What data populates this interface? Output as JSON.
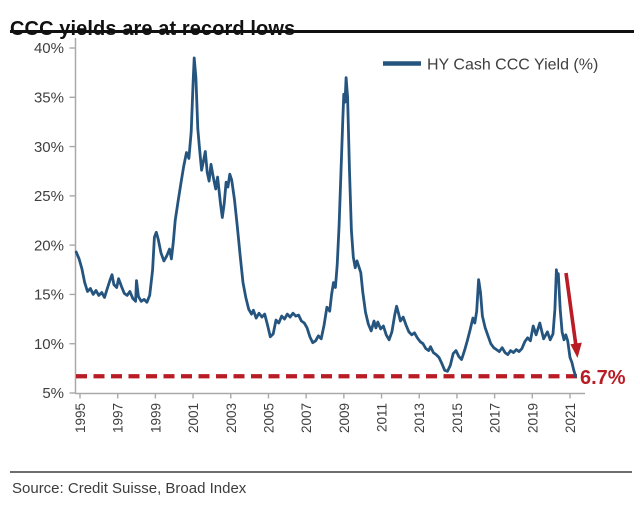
{
  "header": {
    "title": "CCC yields are at record lows"
  },
  "footer": {
    "source": "Source: Credit Suisse, Broad Index"
  },
  "colors": {
    "line_blue": "#25557F",
    "red": "#B91C25",
    "axis_gray": "#A9A9A9",
    "label_gray": "#3F3F3F",
    "legend_text": "#3F3F3F"
  },
  "chart_data": {
    "type": "line",
    "title": "CCC yields are at record lows",
    "legend": "HY Cash CCC Yield (%)",
    "legend_position": "top-right",
    "grid": false,
    "xlabel": "",
    "ylabel": "",
    "xlim": [
      1994.7,
      2021.7
    ],
    "ylim": [
      5,
      40
    ],
    "y_ticks": [
      {
        "label": "40%",
        "value": 40
      },
      {
        "label": "35%",
        "value": 35
      },
      {
        "label": "30%",
        "value": 30
      },
      {
        "label": "25%",
        "value": 25
      },
      {
        "label": "20%",
        "value": 20
      },
      {
        "label": "15%",
        "value": 15
      },
      {
        "label": "10%",
        "value": 10
      },
      {
        "label": "5%",
        "value": 5
      }
    ],
    "x_ticks": [
      {
        "label": "1995",
        "value": 1995
      },
      {
        "label": "1997",
        "value": 1997
      },
      {
        "label": "1999",
        "value": 1999
      },
      {
        "label": "2001",
        "value": 2001
      },
      {
        "label": "2003",
        "value": 2003
      },
      {
        "label": "2005",
        "value": 2005
      },
      {
        "label": "2007",
        "value": 2007
      },
      {
        "label": "2009",
        "value": 2009
      },
      {
        "label": "2011",
        "value": 2011
      },
      {
        "label": "2013",
        "value": 2013
      },
      {
        "label": "2015",
        "value": 2015
      },
      {
        "label": "2017",
        "value": 2017
      },
      {
        "label": "2019",
        "value": 2019
      },
      {
        "label": "2021",
        "value": 2021
      }
    ],
    "reference_line": {
      "value": 6.7,
      "label": "6.7%",
      "style": "dashed",
      "color": "#B91C25"
    },
    "series": [
      {
        "name": "HY Cash CCC Yield (%)",
        "points": [
          [
            1994.8,
            19.3
          ],
          [
            1994.95,
            18.6
          ],
          [
            1995.1,
            17.6
          ],
          [
            1995.25,
            16.2
          ],
          [
            1995.4,
            15.3
          ],
          [
            1995.55,
            15.6
          ],
          [
            1995.7,
            15.0
          ],
          [
            1995.85,
            15.4
          ],
          [
            1996.0,
            14.9
          ],
          [
            1996.15,
            15.2
          ],
          [
            1996.3,
            14.7
          ],
          [
            1996.45,
            15.6
          ],
          [
            1996.6,
            16.5
          ],
          [
            1996.7,
            17.0
          ],
          [
            1996.8,
            16.0
          ],
          [
            1996.95,
            15.7
          ],
          [
            1997.05,
            16.6
          ],
          [
            1997.2,
            15.8
          ],
          [
            1997.35,
            15.1
          ],
          [
            1997.5,
            14.9
          ],
          [
            1997.65,
            15.3
          ],
          [
            1997.8,
            14.6
          ],
          [
            1997.95,
            14.3
          ],
          [
            1998.0,
            16.4
          ],
          [
            1998.1,
            14.8
          ],
          [
            1998.25,
            14.3
          ],
          [
            1998.4,
            14.5
          ],
          [
            1998.55,
            14.2
          ],
          [
            1998.7,
            14.9
          ],
          [
            1998.85,
            17.5
          ],
          [
            1998.95,
            20.8
          ],
          [
            1999.05,
            21.3
          ],
          [
            1999.15,
            20.6
          ],
          [
            1999.3,
            19.2
          ],
          [
            1999.45,
            18.4
          ],
          [
            1999.6,
            18.9
          ],
          [
            1999.75,
            19.6
          ],
          [
            1999.85,
            18.6
          ],
          [
            1999.95,
            20.3
          ],
          [
            2000.05,
            22.5
          ],
          [
            2000.2,
            24.4
          ],
          [
            2000.35,
            26.2
          ],
          [
            2000.5,
            28.0
          ],
          [
            2000.65,
            29.4
          ],
          [
            2000.78,
            28.8
          ],
          [
            2000.9,
            31.5
          ],
          [
            2001.0,
            36.5
          ],
          [
            2001.06,
            39.0
          ],
          [
            2001.15,
            37.0
          ],
          [
            2001.25,
            31.8
          ],
          [
            2001.35,
            29.6
          ],
          [
            2001.45,
            27.6
          ],
          [
            2001.55,
            28.5
          ],
          [
            2001.65,
            29.5
          ],
          [
            2001.75,
            27.4
          ],
          [
            2001.85,
            26.5
          ],
          [
            2001.95,
            28.2
          ],
          [
            2002.05,
            27.1
          ],
          [
            2002.2,
            25.7
          ],
          [
            2002.3,
            26.9
          ],
          [
            2002.45,
            24.3
          ],
          [
            2002.55,
            22.8
          ],
          [
            2002.65,
            24.2
          ],
          [
            2002.75,
            26.4
          ],
          [
            2002.85,
            25.9
          ],
          [
            2002.95,
            27.2
          ],
          [
            2003.05,
            26.6
          ],
          [
            2003.2,
            24.6
          ],
          [
            2003.35,
            21.8
          ],
          [
            2003.5,
            18.9
          ],
          [
            2003.65,
            16.2
          ],
          [
            2003.8,
            14.7
          ],
          [
            2003.95,
            13.5
          ],
          [
            2004.1,
            13.0
          ],
          [
            2004.2,
            13.4
          ],
          [
            2004.35,
            12.6
          ],
          [
            2004.5,
            13.1
          ],
          [
            2004.65,
            12.7
          ],
          [
            2004.8,
            13.0
          ],
          [
            2004.95,
            11.9
          ],
          [
            2005.1,
            10.7
          ],
          [
            2005.25,
            11.0
          ],
          [
            2005.4,
            12.4
          ],
          [
            2005.55,
            12.1
          ],
          [
            2005.7,
            12.8
          ],
          [
            2005.85,
            12.5
          ],
          [
            2006.0,
            13.0
          ],
          [
            2006.15,
            12.7
          ],
          [
            2006.3,
            13.1
          ],
          [
            2006.45,
            12.8
          ],
          [
            2006.6,
            12.9
          ],
          [
            2006.75,
            12.3
          ],
          [
            2006.9,
            12.1
          ],
          [
            2007.05,
            11.6
          ],
          [
            2007.2,
            10.7
          ],
          [
            2007.35,
            10.1
          ],
          [
            2007.5,
            10.3
          ],
          [
            2007.65,
            10.8
          ],
          [
            2007.8,
            10.5
          ],
          [
            2007.95,
            11.9
          ],
          [
            2008.1,
            13.7
          ],
          [
            2008.25,
            13.3
          ],
          [
            2008.35,
            15.0
          ],
          [
            2008.45,
            16.2
          ],
          [
            2008.55,
            15.7
          ],
          [
            2008.65,
            18.0
          ],
          [
            2008.75,
            22.0
          ],
          [
            2008.85,
            27.5
          ],
          [
            2008.95,
            33.0
          ],
          [
            2009.0,
            35.3
          ],
          [
            2009.06,
            34.5
          ],
          [
            2009.12,
            37.0
          ],
          [
            2009.2,
            35.0
          ],
          [
            2009.3,
            27.5
          ],
          [
            2009.4,
            21.5
          ],
          [
            2009.5,
            18.8
          ],
          [
            2009.6,
            17.7
          ],
          [
            2009.7,
            18.4
          ],
          [
            2009.8,
            17.8
          ],
          [
            2009.9,
            17.2
          ],
          [
            2010.0,
            15.3
          ],
          [
            2010.15,
            13.2
          ],
          [
            2010.3,
            12.0
          ],
          [
            2010.45,
            11.3
          ],
          [
            2010.6,
            12.3
          ],
          [
            2010.7,
            11.6
          ],
          [
            2010.8,
            12.2
          ],
          [
            2010.95,
            11.5
          ],
          [
            2011.1,
            11.8
          ],
          [
            2011.25,
            10.9
          ],
          [
            2011.4,
            10.4
          ],
          [
            2011.55,
            11.2
          ],
          [
            2011.7,
            12.9
          ],
          [
            2011.8,
            13.8
          ],
          [
            2011.9,
            13.1
          ],
          [
            2012.0,
            12.3
          ],
          [
            2012.15,
            12.7
          ],
          [
            2012.3,
            11.9
          ],
          [
            2012.45,
            11.2
          ],
          [
            2012.6,
            10.9
          ],
          [
            2012.75,
            11.1
          ],
          [
            2012.9,
            10.6
          ],
          [
            2013.05,
            10.2
          ],
          [
            2013.2,
            10.0
          ],
          [
            2013.35,
            9.5
          ],
          [
            2013.5,
            9.3
          ],
          [
            2013.6,
            9.7
          ],
          [
            2013.75,
            9.1
          ],
          [
            2013.9,
            8.9
          ],
          [
            2014.05,
            8.6
          ],
          [
            2014.2,
            8.0
          ],
          [
            2014.35,
            7.3
          ],
          [
            2014.5,
            7.2
          ],
          [
            2014.65,
            7.8
          ],
          [
            2014.8,
            9.0
          ],
          [
            2014.95,
            9.3
          ],
          [
            2015.1,
            8.7
          ],
          [
            2015.25,
            8.4
          ],
          [
            2015.4,
            9.3
          ],
          [
            2015.55,
            10.3
          ],
          [
            2015.7,
            11.4
          ],
          [
            2015.85,
            12.6
          ],
          [
            2015.95,
            12.1
          ],
          [
            2016.05,
            13.3
          ],
          [
            2016.15,
            16.5
          ],
          [
            2016.25,
            15.2
          ],
          [
            2016.35,
            12.8
          ],
          [
            2016.5,
            11.6
          ],
          [
            2016.65,
            10.8
          ],
          [
            2016.8,
            10.0
          ],
          [
            2016.95,
            9.6
          ],
          [
            2017.1,
            9.4
          ],
          [
            2017.25,
            9.2
          ],
          [
            2017.4,
            9.6
          ],
          [
            2017.55,
            9.1
          ],
          [
            2017.7,
            8.9
          ],
          [
            2017.85,
            9.3
          ],
          [
            2018.0,
            9.1
          ],
          [
            2018.15,
            9.4
          ],
          [
            2018.3,
            9.2
          ],
          [
            2018.45,
            9.5
          ],
          [
            2018.6,
            10.2
          ],
          [
            2018.75,
            10.6
          ],
          [
            2018.9,
            10.3
          ],
          [
            2019.05,
            11.8
          ],
          [
            2019.2,
            10.9
          ],
          [
            2019.4,
            12.1
          ],
          [
            2019.6,
            10.5
          ],
          [
            2019.8,
            11.2
          ],
          [
            2019.95,
            10.4
          ],
          [
            2020.1,
            11.0
          ],
          [
            2020.2,
            13.5
          ],
          [
            2020.28,
            17.5
          ],
          [
            2020.33,
            16.4
          ],
          [
            2020.38,
            17.1
          ],
          [
            2020.48,
            13.5
          ],
          [
            2020.58,
            11.2
          ],
          [
            2020.68,
            10.4
          ],
          [
            2020.78,
            10.9
          ],
          [
            2020.88,
            10.3
          ],
          [
            2021.0,
            8.6
          ],
          [
            2021.1,
            8.1
          ],
          [
            2021.2,
            7.3
          ],
          [
            2021.3,
            6.7
          ]
        ]
      }
    ]
  }
}
